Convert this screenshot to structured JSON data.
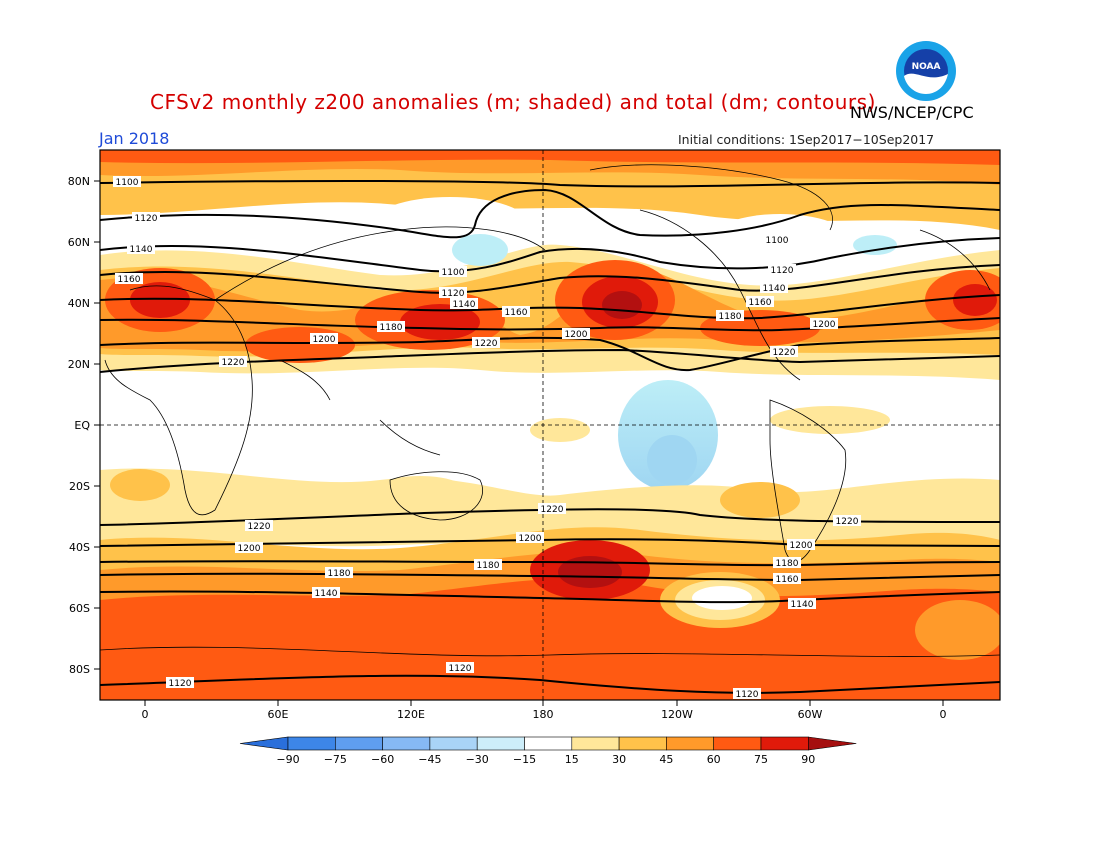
{
  "header": {
    "title": "CFSv2 monthly z200 anomalies (m; shaded) and total (dm; contours)",
    "agency": "NWS/NCEP/CPC",
    "month": "Jan 2018",
    "initial_conditions": "Initial conditions: 1Sep2017−10Sep2017",
    "logo_text": "NOAA"
  },
  "map": {
    "lat_labels": [
      "80N",
      "60N",
      "40N",
      "20N",
      "EQ",
      "20S",
      "40S",
      "60S",
      "80S"
    ],
    "lon_labels": [
      "0",
      "60E",
      "120E",
      "180",
      "120W",
      "60W",
      "0"
    ],
    "contour_levels": [
      "1100",
      "1120",
      "1140",
      "1160",
      "1180",
      "1200",
      "1220"
    ],
    "grid_style": "dashed"
  },
  "colorbar": {
    "tick_labels": [
      "−90",
      "−75",
      "−60",
      "−45",
      "−30",
      "−15",
      "15",
      "30",
      "45",
      "60",
      "75",
      "90"
    ],
    "colors": [
      "#2a6fdb",
      "#3d86e8",
      "#5f9ef0",
      "#86b9f4",
      "#a9d4f7",
      "#cdeefa",
      "#ffffff",
      "#ffe79a",
      "#ffc24a",
      "#ff9a2a",
      "#ff5a12",
      "#e01a0a",
      "#a50f0f"
    ],
    "arrows": true
  },
  "colors": {
    "title": "#d40000",
    "month": "#1f4bd8",
    "pos_light": "#ffe79a",
    "pos_mid": "#ffc24a",
    "pos_orange": "#ff9a2a",
    "pos_red": "#ff5a12",
    "pos_dark": "#d81e0b",
    "pos_darkest": "#b31010",
    "neg_light": "#bdeef7",
    "neg_mid": "#9fd6f2"
  }
}
